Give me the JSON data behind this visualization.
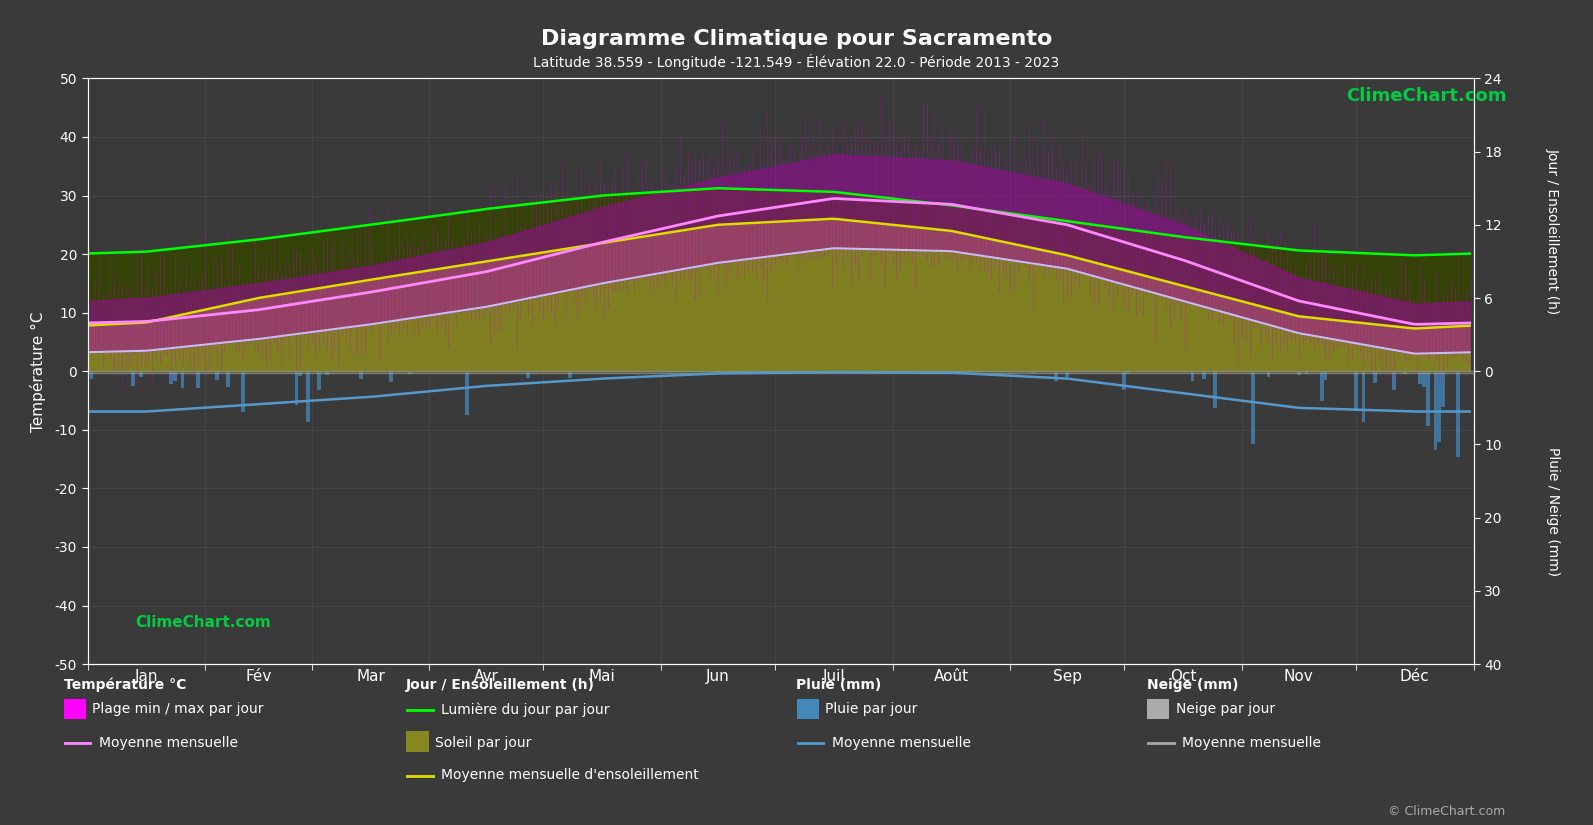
{
  "title": "Diagramme Climatique pour Sacramento",
  "subtitle": "Latitude 38.559 - Longitude -121.549 - Élévation 22.0 - Période 2013 - 2023",
  "background_color": "#3a3a3a",
  "text_color": "#ffffff",
  "grid_color": "#555555",
  "months": [
    "Jan",
    "Fév",
    "Mar",
    "Avr",
    "Mai",
    "Jun",
    "Juil",
    "Août",
    "Sep",
    "Oct",
    "Nov",
    "Déc"
  ],
  "days_per_month": [
    31,
    28,
    31,
    30,
    31,
    30,
    31,
    31,
    30,
    31,
    30,
    31
  ],
  "temp_ylim": [
    -50,
    50
  ],
  "temp_yticks": [
    -50,
    -40,
    -30,
    -20,
    -10,
    0,
    10,
    20,
    30,
    40,
    50
  ],
  "sun_yticks": [
    0,
    6,
    12,
    18,
    24
  ],
  "rain_yticks": [
    0,
    10,
    20,
    30,
    40
  ],
  "temp_mean_monthly": [
    8.5,
    10.5,
    13.5,
    17.0,
    22.0,
    26.5,
    29.5,
    28.5,
    25.0,
    19.0,
    12.0,
    8.0
  ],
  "temp_min_monthly": [
    3.5,
    5.5,
    8.0,
    11.0,
    15.0,
    18.5,
    21.0,
    20.5,
    17.5,
    12.0,
    6.5,
    3.0
  ],
  "temp_max_monthly": [
    12.5,
    15.0,
    18.0,
    22.0,
    28.0,
    33.0,
    37.0,
    36.0,
    32.0,
    25.0,
    16.0,
    11.5
  ],
  "daylight_monthly": [
    9.8,
    10.8,
    12.0,
    13.3,
    14.4,
    15.0,
    14.7,
    13.6,
    12.3,
    11.0,
    9.9,
    9.5
  ],
  "sunshine_monthly": [
    4.0,
    6.0,
    7.5,
    9.0,
    10.5,
    12.0,
    12.5,
    11.5,
    9.5,
    7.0,
    4.5,
    3.5
  ],
  "rain_daily_values_mm": [
    5.0,
    4.0,
    3.5,
    2.0,
    1.0,
    0.2,
    0.1,
    0.1,
    0.8,
    2.5,
    4.5,
    5.0
  ],
  "rain_mean_monthly_mm": [
    5.5,
    4.5,
    3.5,
    2.0,
    1.0,
    0.3,
    0.1,
    0.2,
    1.0,
    3.0,
    5.0,
    5.5
  ],
  "colors": {
    "magenta_fill": "#cc00cc",
    "magenta_spikes": "#ff00ff",
    "olive_fill": "#888800",
    "dark_olive": "#666600",
    "green_line": "#00ff00",
    "yellow_line": "#dddd00",
    "pink_line": "#ff88ff",
    "white_line": "#ddddff",
    "blue_bars": "#4488bb",
    "blue_line": "#5599cc",
    "clime_green": "#00cc44"
  }
}
